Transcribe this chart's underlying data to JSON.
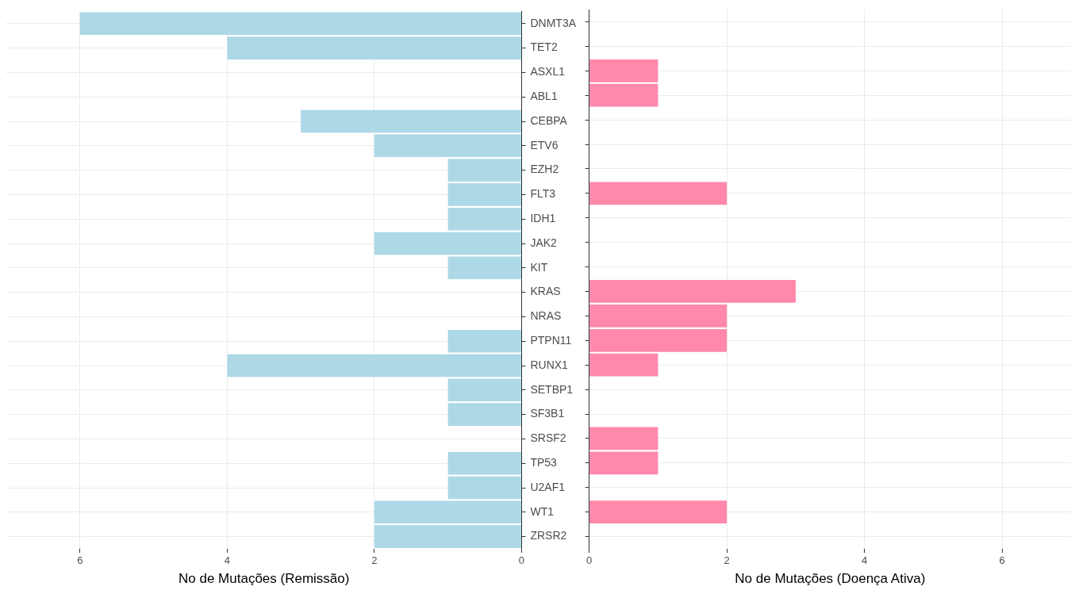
{
  "chart_data": [
    {
      "type": "bar",
      "orientation": "horizontal",
      "xlabel": "No de Mutações (Remissão)",
      "categories": [
        "DNMT3A",
        "TET2",
        "ASXL1",
        "ABL1",
        "CEBPA",
        "ETV6",
        "EZH2",
        "FLT3",
        "IDH1",
        "JAK2",
        "KIT",
        "KRAS",
        "NRAS",
        "PTPN11",
        "RUNX1",
        "SETBP1",
        "SF3B1",
        "SRSF2",
        "TP53",
        "U2AF1",
        "WT1",
        "ZRSR2"
      ],
      "values": [
        6,
        4,
        null,
        null,
        3,
        2,
        1,
        1,
        1,
        2,
        1,
        null,
        null,
        1,
        4,
        1,
        1,
        null,
        1,
        1,
        2,
        2
      ],
      "color": "#add8e6",
      "xlim": [
        7,
        0
      ],
      "xticks": [
        0,
        2,
        4,
        6
      ],
      "grid": true
    },
    {
      "type": "bar",
      "orientation": "horizontal",
      "xlabel": "No de Mutações (Doença Ativa)",
      "categories": [
        null,
        null,
        null,
        null,
        null,
        null,
        null,
        null,
        null,
        null,
        null,
        null,
        null,
        null,
        null,
        null,
        null,
        null,
        null,
        null,
        null,
        null
      ],
      "values": [
        null,
        null,
        1,
        1,
        null,
        null,
        null,
        2,
        null,
        null,
        null,
        3,
        2,
        2,
        1,
        null,
        null,
        1,
        1,
        null,
        2,
        null
      ],
      "color": "#ff88ab",
      "xlim": [
        0,
        7
      ],
      "xticks": [
        0,
        2,
        4,
        6
      ],
      "grid": true,
      "tick_labels": "x"
    }
  ]
}
